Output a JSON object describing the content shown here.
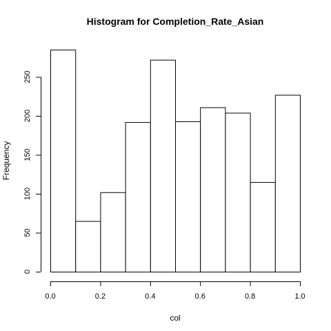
{
  "chart_data": {
    "type": "bar",
    "title": "Histogram for  Completion_Rate_Asian",
    "xlabel": "col",
    "ylabel": "Frequency",
    "bin_edges": [
      0.0,
      0.1,
      0.2,
      0.3,
      0.4,
      0.5,
      0.6,
      0.7,
      0.8,
      0.9,
      1.0
    ],
    "values": [
      285,
      65,
      102,
      192,
      272,
      193,
      211,
      204,
      115,
      227
    ],
    "xlim": [
      0.0,
      1.0
    ],
    "ylim": [
      0,
      285
    ],
    "x_ticks": [
      0.0,
      0.2,
      0.4,
      0.6,
      0.8,
      1.0
    ],
    "x_tick_labels": [
      "0.0",
      "0.2",
      "0.4",
      "0.6",
      "0.8",
      "1.0"
    ],
    "y_ticks": [
      0,
      50,
      100,
      150,
      200,
      250
    ],
    "y_tick_labels": [
      "0",
      "50",
      "100",
      "150",
      "200",
      "250"
    ],
    "grid": false,
    "bar_fill": "#ffffff",
    "bar_stroke": "#000000"
  }
}
